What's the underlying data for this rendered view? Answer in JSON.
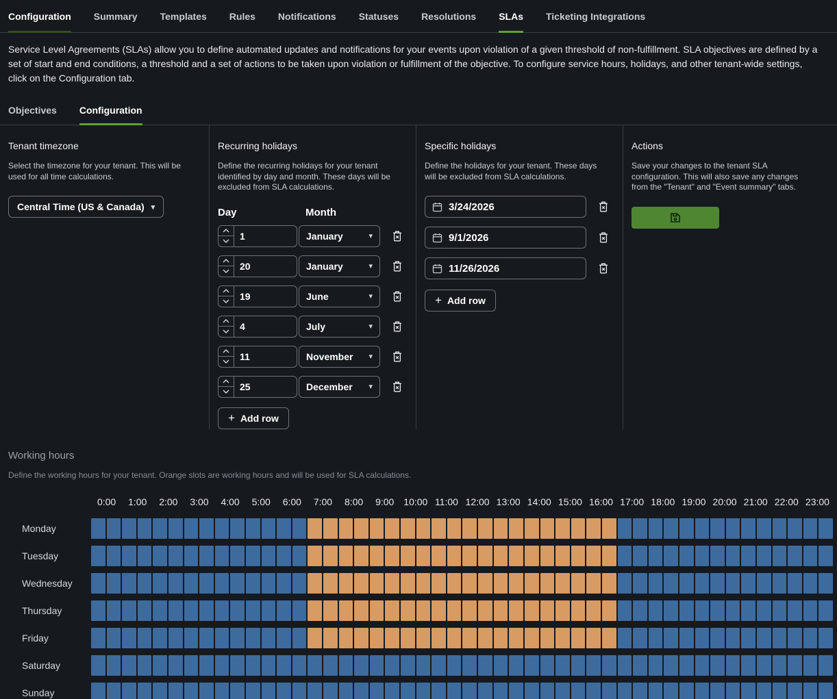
{
  "colors": {
    "accent_green": "#61a033",
    "dim_green": "#36511d",
    "save_button_green": "#4e8632",
    "working_slot_orange": "#d89b63",
    "non_working_slot_blue": "#3d6b9e"
  },
  "top_tabs": [
    {
      "label": "Configuration",
      "state": "dim-underline"
    },
    {
      "label": "Summary",
      "state": "normal"
    },
    {
      "label": "Templates",
      "state": "normal"
    },
    {
      "label": "Rules",
      "state": "normal"
    },
    {
      "label": "Notifications",
      "state": "normal"
    },
    {
      "label": "Statuses",
      "state": "normal"
    },
    {
      "label": "Resolutions",
      "state": "normal"
    },
    {
      "label": "SLAs",
      "state": "active"
    },
    {
      "label": "Ticketing Integrations",
      "state": "normal"
    }
  ],
  "intro": "Service Level Agreements (SLAs) allow you to define automated updates and notifications for your events upon violation of a given threshold of non-fulfillment. SLA objectives are defined by a set of start and end conditions, a threshold and a set of actions to be taken upon violation or fulfillment of the objective. To configure service hours, holidays, and other tenant-wide settings, click on the Configuration tab.",
  "sub_tabs": [
    {
      "label": "Objectives",
      "state": "normal"
    },
    {
      "label": "Configuration",
      "state": "active"
    }
  ],
  "timezone_panel": {
    "title": "Tenant timezone",
    "description": "Select the timezone for your tenant. This will be used for all time calculations.",
    "selected_value": "Central Time (US & Canada)"
  },
  "recurring_panel": {
    "title": "Recurring holidays",
    "description": "Define the recurring holidays for your tenant identified by day and month. These days will be excluded from SLA calculations.",
    "day_header": "Day",
    "month_header": "Month",
    "rows": [
      {
        "day": "1",
        "month": "January"
      },
      {
        "day": "20",
        "month": "January"
      },
      {
        "day": "19",
        "month": "June"
      },
      {
        "day": "4",
        "month": "July"
      },
      {
        "day": "11",
        "month": "November"
      },
      {
        "day": "25",
        "month": "December"
      }
    ],
    "add_row_label": "Add row"
  },
  "specific_panel": {
    "title": "Specific holidays",
    "description": "Define the holidays for your tenant. These days will be excluded from SLA calculations.",
    "dates": [
      "3/24/2026",
      "9/1/2026",
      "11/26/2026"
    ],
    "add_row_label": "Add row"
  },
  "actions_panel": {
    "title": "Actions",
    "description": "Save your changes to the tenant SLA configuration. This will also save any changes from the \"Tenant\" and \"Event summary\" tabs."
  },
  "working_hours": {
    "title": "Working hours",
    "description": "Define the working hours for your tenant. Orange slots are working hours and will be used for SLA calculations.",
    "hour_labels": [
      "0:00",
      "1:00",
      "2:00",
      "3:00",
      "4:00",
      "5:00",
      "6:00",
      "7:00",
      "8:00",
      "9:00",
      "10:00",
      "11:00",
      "12:00",
      "13:00",
      "14:00",
      "15:00",
      "16:00",
      "17:00",
      "18:00",
      "19:00",
      "20:00",
      "21:00",
      "22:00",
      "23:00"
    ],
    "slots_per_day": 48,
    "days": [
      {
        "label": "Monday",
        "working_start_slot": 14,
        "working_end_slot": 34
      },
      {
        "label": "Tuesday",
        "working_start_slot": 14,
        "working_end_slot": 34
      },
      {
        "label": "Wednesday",
        "working_start_slot": 14,
        "working_end_slot": 34
      },
      {
        "label": "Thursday",
        "working_start_slot": 14,
        "working_end_slot": 34
      },
      {
        "label": "Friday",
        "working_start_slot": 14,
        "working_end_slot": 34
      },
      {
        "label": "Saturday",
        "working_start_slot": null,
        "working_end_slot": null
      },
      {
        "label": "Sunday",
        "working_start_slot": null,
        "working_end_slot": null
      }
    ]
  }
}
